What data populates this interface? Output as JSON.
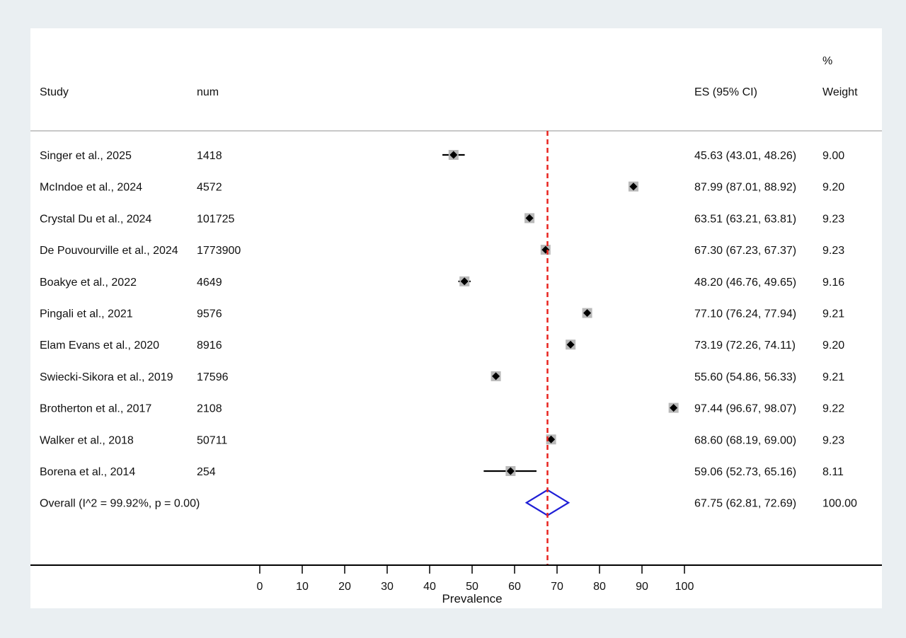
{
  "header": {
    "study": "Study",
    "num": "num",
    "es": "ES (95% CI)",
    "weight_pct": "%",
    "weight": "Weight"
  },
  "chart_data": {
    "type": "forest",
    "xlabel": "Prevalence",
    "xlim": [
      0,
      100
    ],
    "xticks": [
      0,
      10,
      20,
      30,
      40,
      50,
      60,
      70,
      80,
      90,
      100
    ],
    "grid": false,
    "reference_line": 67.75,
    "colors": {
      "reference_line": "#e8231e",
      "overall_diamond": "#1f1fd6",
      "weight_box": "#b9b9b9",
      "point": "#000000",
      "background": "#eaeff2"
    },
    "studies": [
      {
        "study": "Singer et al., 2025",
        "num": "1418",
        "es": 45.63,
        "lo": 43.01,
        "hi": 48.26,
        "es_text": "45.63 (43.01, 48.26)",
        "weight": "9.00"
      },
      {
        "study": "McIndoe et al., 2024",
        "num": "4572",
        "es": 87.99,
        "lo": 87.01,
        "hi": 88.92,
        "es_text": "87.99 (87.01, 88.92)",
        "weight": "9.20"
      },
      {
        "study": "Crystal Du et al., 2024",
        "num": "101725",
        "es": 63.51,
        "lo": 63.21,
        "hi": 63.81,
        "es_text": "63.51 (63.21, 63.81)",
        "weight": "9.23"
      },
      {
        "study": "De Pouvourville et al., 2024",
        "num": "1773900",
        "es": 67.3,
        "lo": 67.23,
        "hi": 67.37,
        "es_text": "67.30 (67.23, 67.37)",
        "weight": "9.23"
      },
      {
        "study": "Boakye et al., 2022",
        "num": "4649",
        "es": 48.2,
        "lo": 46.76,
        "hi": 49.65,
        "es_text": "48.20 (46.76, 49.65)",
        "weight": "9.16"
      },
      {
        "study": "Pingali et al., 2021",
        "num": "9576",
        "es": 77.1,
        "lo": 76.24,
        "hi": 77.94,
        "es_text": "77.10 (76.24, 77.94)",
        "weight": "9.21"
      },
      {
        "study": "Elam Evans et al., 2020",
        "num": "8916",
        "es": 73.19,
        "lo": 72.26,
        "hi": 74.11,
        "es_text": "73.19 (72.26, 74.11)",
        "weight": "9.20"
      },
      {
        "study": "Swiecki-Sikora et al., 2019",
        "num": "17596",
        "es": 55.6,
        "lo": 54.86,
        "hi": 56.33,
        "es_text": "55.60 (54.86, 56.33)",
        "weight": "9.21"
      },
      {
        "study": "Brotherton et al., 2017",
        "num": "2108",
        "es": 97.44,
        "lo": 96.67,
        "hi": 98.07,
        "es_text": "97.44 (96.67, 98.07)",
        "weight": "9.22"
      },
      {
        "study": "Walker et al., 2018",
        "num": "50711",
        "es": 68.6,
        "lo": 68.19,
        "hi": 69.0,
        "es_text": "68.60 (68.19, 69.00)",
        "weight": "9.23"
      },
      {
        "study": "Borena et al., 2014",
        "num": "254",
        "es": 59.06,
        "lo": 52.73,
        "hi": 65.16,
        "es_text": "59.06 (52.73, 65.16)",
        "weight": "8.11"
      }
    ],
    "overall": {
      "label": "Overall  (I^2 = 99.92%, p = 0.00)",
      "es": 67.75,
      "lo": 62.81,
      "hi": 72.69,
      "es_text": "67.75 (62.81, 72.69)",
      "weight": "100.00"
    }
  }
}
